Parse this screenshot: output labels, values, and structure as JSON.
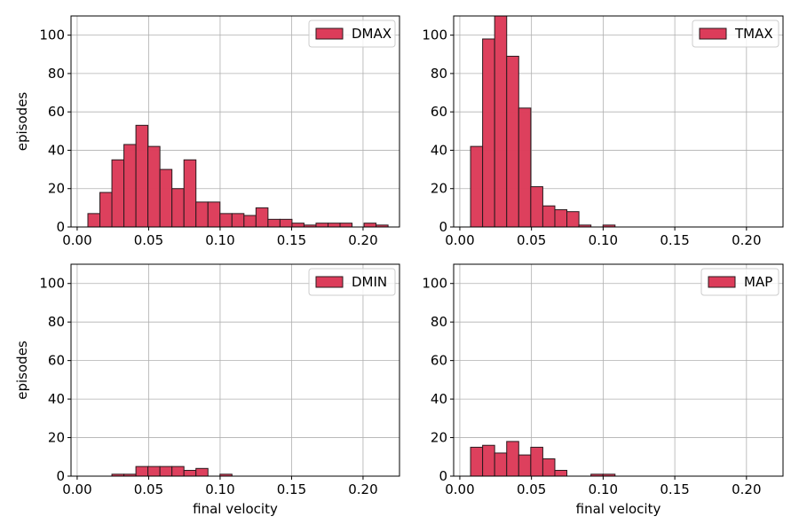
{
  "chart_data": [
    {
      "type": "histogram",
      "ylabel": "episodes",
      "bins": [
        0.0075,
        0.0159,
        0.0243,
        0.0327,
        0.0411,
        0.0495,
        0.0579,
        0.0663,
        0.0747,
        0.0831,
        0.0915,
        0.0999,
        0.1083,
        0.1167,
        0.1251,
        0.1335,
        0.1419,
        0.1503,
        0.1587,
        0.1671,
        0.1755,
        0.1839,
        0.1923,
        0.2007,
        0.2091,
        0.2175
      ],
      "series": [
        {
          "name": "DMAX",
          "color": "#dc3c5a",
          "values": [
            7,
            18,
            35,
            43,
            53,
            42,
            30,
            20,
            35,
            13,
            13,
            7,
            7,
            6,
            10,
            4,
            4,
            2,
            1,
            2,
            2,
            2,
            0,
            2,
            1
          ]
        }
      ],
      "xlim": [
        -0.0043,
        0.2255
      ],
      "ylim": [
        0,
        110
      ],
      "xticks": [
        {
          "value": 0,
          "label": "0.00"
        },
        {
          "value": 0.05,
          "label": "0.05"
        },
        {
          "value": 0.1,
          "label": "0.10"
        },
        {
          "value": 0.15,
          "label": "0.15"
        },
        {
          "value": 0.2,
          "label": "0.20"
        }
      ],
      "yticks": [
        0,
        20,
        40,
        60,
        80,
        100
      ],
      "grid": true,
      "legend": "upper right"
    },
    {
      "type": "histogram",
      "bins": [
        0.0075,
        0.0159,
        0.0243,
        0.0327,
        0.0411,
        0.0495,
        0.0579,
        0.0663,
        0.0747,
        0.0831,
        0.0915,
        0.0999,
        0.1083,
        0.1167,
        0.1251,
        0.1335,
        0.1419,
        0.1503,
        0.1587,
        0.1671,
        0.1755,
        0.1839,
        0.1923,
        0.2007,
        0.2091,
        0.2175
      ],
      "series": [
        {
          "name": "TMAX",
          "color": "#dc3c5a",
          "values": [
            42,
            98,
            115,
            89,
            62,
            21,
            11,
            9,
            8,
            1,
            0,
            1,
            0,
            0,
            0,
            0,
            0,
            0,
            0,
            0,
            0,
            0,
            0,
            0,
            0
          ]
        }
      ],
      "xlim": [
        -0.0043,
        0.2255
      ],
      "ylim": [
        0,
        110
      ],
      "xticks": [
        {
          "value": 0,
          "label": "0.00"
        },
        {
          "value": 0.05,
          "label": "0.05"
        },
        {
          "value": 0.1,
          "label": "0.10"
        },
        {
          "value": 0.15,
          "label": "0.15"
        },
        {
          "value": 0.2,
          "label": "0.20"
        }
      ],
      "yticks": [
        0,
        20,
        40,
        60,
        80,
        100
      ],
      "grid": true,
      "legend": "upper right"
    },
    {
      "type": "histogram",
      "ylabel": "episodes",
      "xlabel": "final velocity",
      "bins": [
        0.0075,
        0.0159,
        0.0243,
        0.0327,
        0.0411,
        0.0495,
        0.0579,
        0.0663,
        0.0747,
        0.0831,
        0.0915,
        0.0999,
        0.1083,
        0.1167,
        0.1251,
        0.1335,
        0.1419,
        0.1503,
        0.1587,
        0.1671,
        0.1755,
        0.1839,
        0.1923,
        0.2007,
        0.2091,
        0.2175
      ],
      "series": [
        {
          "name": "DMIN",
          "color": "#dc3c5a",
          "values": [
            0,
            0,
            1,
            1,
            5,
            5,
            5,
            5,
            3,
            4,
            0,
            1,
            0,
            0,
            0,
            0,
            0,
            0,
            0,
            0,
            0,
            0,
            0,
            0,
            0
          ]
        }
      ],
      "xlim": [
        -0.0043,
        0.2255
      ],
      "ylim": [
        0,
        110
      ],
      "xticks": [
        {
          "value": 0,
          "label": "0.00"
        },
        {
          "value": 0.05,
          "label": "0.05"
        },
        {
          "value": 0.1,
          "label": "0.10"
        },
        {
          "value": 0.15,
          "label": "0.15"
        },
        {
          "value": 0.2,
          "label": "0.20"
        }
      ],
      "yticks": [
        0,
        20,
        40,
        60,
        80,
        100
      ],
      "grid": true,
      "legend": "upper right"
    },
    {
      "type": "histogram",
      "xlabel": "final velocity",
      "bins": [
        0.0075,
        0.0159,
        0.0243,
        0.0327,
        0.0411,
        0.0495,
        0.0579,
        0.0663,
        0.0747,
        0.0831,
        0.0915,
        0.0999,
        0.1083,
        0.1167,
        0.1251,
        0.1335,
        0.1419,
        0.1503,
        0.1587,
        0.1671,
        0.1755,
        0.1839,
        0.1923,
        0.2007,
        0.2091,
        0.2175
      ],
      "series": [
        {
          "name": "MAP",
          "color": "#dc3c5a",
          "values": [
            15,
            16,
            12,
            18,
            11,
            15,
            9,
            3,
            0,
            0,
            1,
            1,
            0,
            0,
            0,
            0,
            0,
            0,
            0,
            0,
            0,
            0,
            0,
            0,
            0
          ]
        }
      ],
      "xlim": [
        -0.0043,
        0.2255
      ],
      "ylim": [
        0,
        110
      ],
      "xticks": [
        {
          "value": 0,
          "label": "0.00"
        },
        {
          "value": 0.05,
          "label": "0.05"
        },
        {
          "value": 0.1,
          "label": "0.10"
        },
        {
          "value": 0.15,
          "label": "0.15"
        },
        {
          "value": 0.2,
          "label": "0.20"
        }
      ],
      "yticks": [
        0,
        20,
        40,
        60,
        80,
        100
      ],
      "grid": true,
      "legend": "upper right"
    }
  ]
}
